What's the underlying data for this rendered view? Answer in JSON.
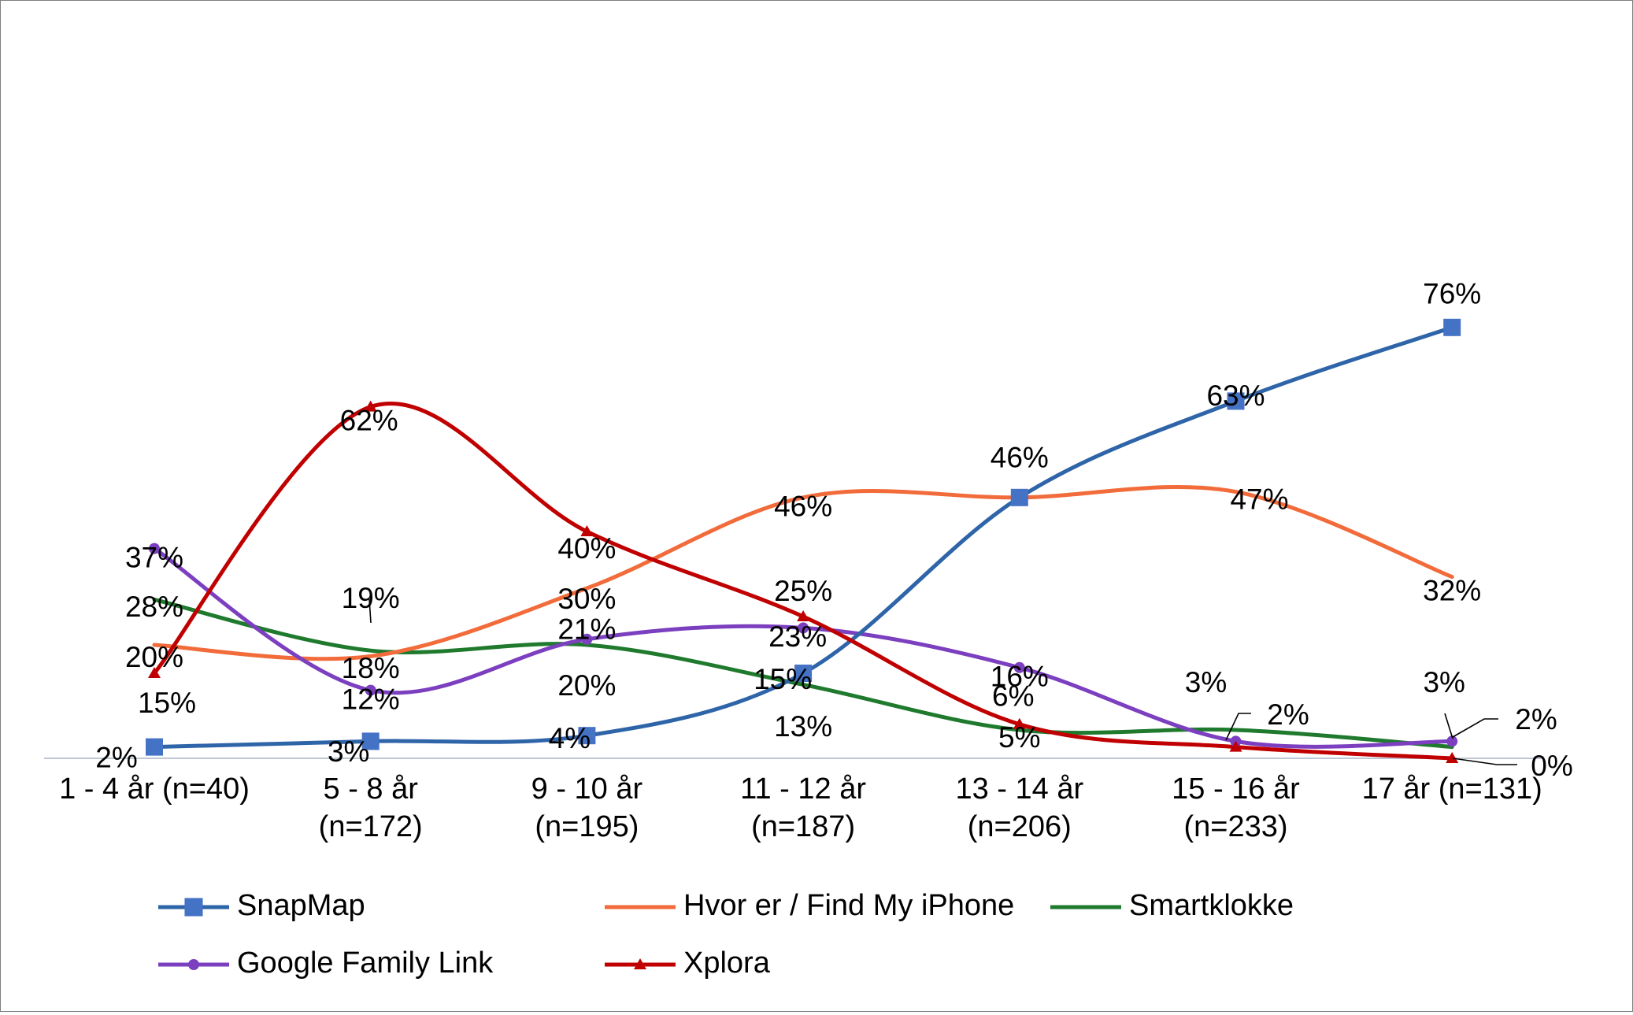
{
  "chart_data": {
    "type": "line",
    "title": "",
    "xlabel": "",
    "ylabel": "",
    "ylim": [
      0,
      100
    ],
    "grid": false,
    "legend_position": "bottom",
    "categories": [
      [
        "1 - 4 år (n=40)"
      ],
      [
        "5 - 8 år",
        "(n=172)"
      ],
      [
        "9 - 10 år",
        "(n=195)"
      ],
      [
        "11 - 12 år",
        "(n=187)"
      ],
      [
        "13 - 14 år",
        "(n=206)"
      ],
      [
        "15 - 16 år",
        "(n=233)"
      ],
      [
        "17 år (n=131)"
      ]
    ],
    "series": [
      {
        "name": "SnapMap",
        "color": "#2E64A8",
        "marker": "square",
        "values": [
          2,
          3,
          4,
          15,
          46,
          63,
          76
        ],
        "labels": [
          "2%",
          "3%",
          "4%",
          "15%",
          "46%",
          "63%",
          "76%"
        ]
      },
      {
        "name": "Hvor er / Find My iPhone",
        "color": "#F26B3A",
        "marker": "none",
        "values": [
          20,
          18,
          30,
          46,
          46,
          47,
          32
        ],
        "labels": [
          "20%",
          "18%",
          "30%",
          "46%",
          "",
          "47%",
          "32%"
        ]
      },
      {
        "name": "Smartklokke",
        "color": "#1F7A2E",
        "marker": "none",
        "values": [
          28,
          19,
          20,
          13,
          5,
          5,
          2
        ],
        "labels": [
          "28%",
          "19%",
          "20%",
          "13%",
          "5%",
          "",
          ""
        ]
      },
      {
        "name": "Google Family Link",
        "color": "#7B3FBF",
        "marker": "circle",
        "values": [
          37,
          12,
          21,
          23,
          16,
          3,
          3
        ],
        "labels": [
          "37%",
          "12%",
          "21%",
          "23%",
          "16%",
          "3%",
          "3%"
        ]
      },
      {
        "name": "Xplora",
        "color": "#C00000",
        "marker": "triangle",
        "values": [
          15,
          62,
          40,
          25,
          6,
          2,
          0
        ],
        "labels": [
          "15%",
          "62%",
          "40%",
          "25%",
          "6%",
          "",
          ""
        ]
      }
    ],
    "callout_labels": [
      "2%",
      "2%",
      "0%"
    ]
  }
}
